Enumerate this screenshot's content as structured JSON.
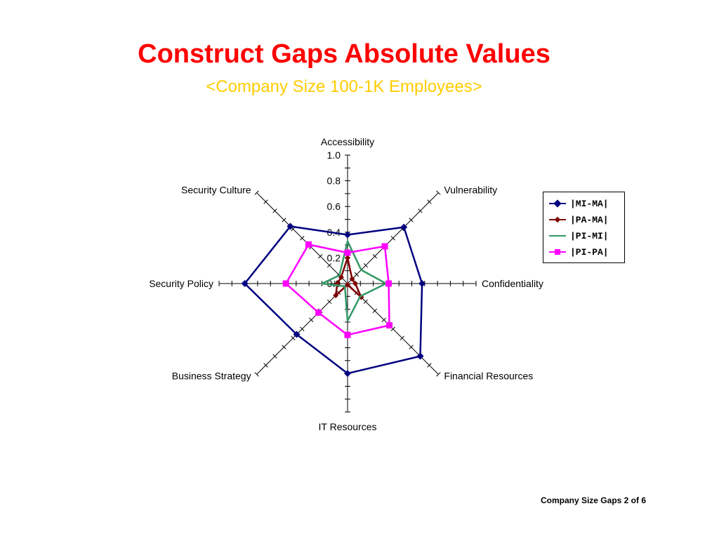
{
  "slide": {
    "title": "Construct Gaps Absolute Values",
    "subtitle": "<Company Size 100-1K Employees>",
    "footer": "Company Size Gaps 2 of 6"
  },
  "chart_data": {
    "type": "radar",
    "axes": [
      "Accessibility",
      "Vulnerability",
      "Confidentiality",
      "Financial Resources",
      "IT Resources",
      "Business Strategy",
      "Security Policy",
      "Security Culture"
    ],
    "tick_labels": [
      "0.0",
      "0.2",
      "0.4",
      "0.6",
      "0.8",
      "1.0"
    ],
    "range": [
      0,
      1.0
    ],
    "series": [
      {
        "name": "|MI-MA|",
        "color": "#000080",
        "marker": "diamond",
        "values": [
          0.38,
          0.62,
          0.58,
          0.8,
          0.7,
          0.56,
          0.8,
          0.63
        ]
      },
      {
        "name": "|PA-MA|",
        "color": "#800000",
        "marker": "diamond",
        "values": [
          0.2,
          0.05,
          0.06,
          0.15,
          0.01,
          0.13,
          0.08,
          0.07
        ]
      },
      {
        "name": "|PI-MI|",
        "color": "#339966",
        "marker": "none",
        "values": [
          0.33,
          0.15,
          0.3,
          0.14,
          0.29,
          0.03,
          0.2,
          0.09
        ]
      },
      {
        "name": "|PI-PA|",
        "color": "#ff00ff",
        "marker": "square",
        "values": [
          0.24,
          0.41,
          0.32,
          0.46,
          0.4,
          0.32,
          0.48,
          0.43
        ]
      }
    ]
  }
}
